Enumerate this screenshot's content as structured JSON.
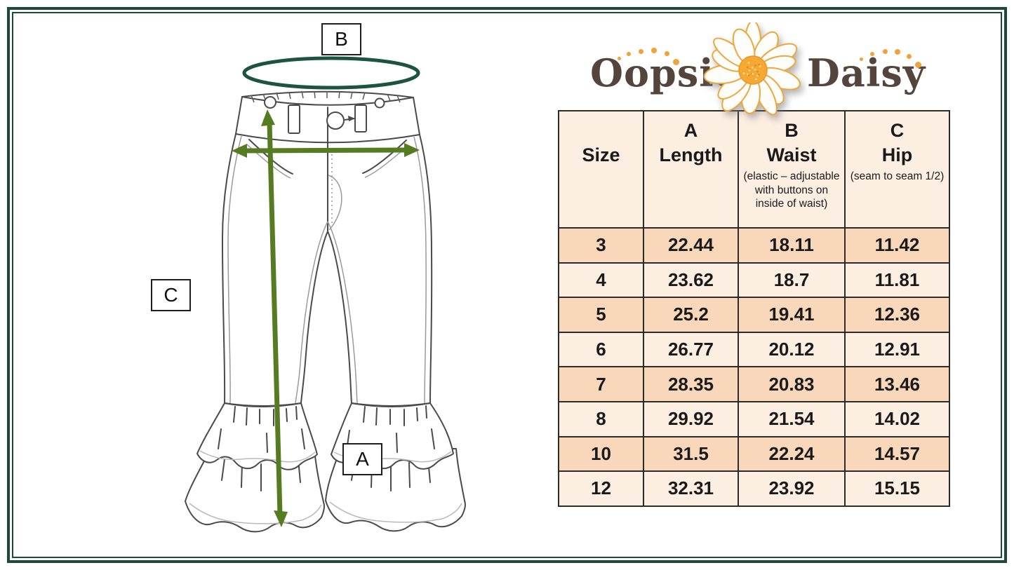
{
  "brand": {
    "word_left": "Oopsie",
    "word_right": "Daisy"
  },
  "diagram": {
    "label_length": "A",
    "label_waist": "B",
    "label_hip": "C"
  },
  "size_chart": {
    "columns": [
      {
        "letter": "",
        "title": "Size",
        "note": ""
      },
      {
        "letter": "A",
        "title": "Length",
        "note": ""
      },
      {
        "letter": "B",
        "title": "Waist",
        "note": "(elastic – adjustable with buttons on inside of waist)"
      },
      {
        "letter": "C",
        "title": "Hip",
        "note": "(seam to seam 1/2)"
      }
    ],
    "rows": [
      [
        "3",
        "22.44",
        "18.11",
        "11.42"
      ],
      [
        "4",
        "23.62",
        "18.7",
        "11.81"
      ],
      [
        "5",
        "25.2",
        "19.41",
        "12.36"
      ],
      [
        "6",
        "26.77",
        "20.12",
        "12.91"
      ],
      [
        "7",
        "28.35",
        "20.83",
        "13.46"
      ],
      [
        "8",
        "29.92",
        "21.54",
        "14.02"
      ],
      [
        "10",
        "31.5",
        "22.24",
        "14.57"
      ],
      [
        "12",
        "32.31",
        "23.92",
        "15.15"
      ]
    ]
  },
  "colors": {
    "frame_green": "#1b4a39",
    "arrow_green": "#567c22",
    "ellipse_green": "#1c5440",
    "row_dark": "#f8d7ba",
    "row_light": "#fdeee2",
    "logo_brown": "#53443c",
    "logo_orange": "#f0a23c",
    "table_border": "#2b2b2b"
  }
}
